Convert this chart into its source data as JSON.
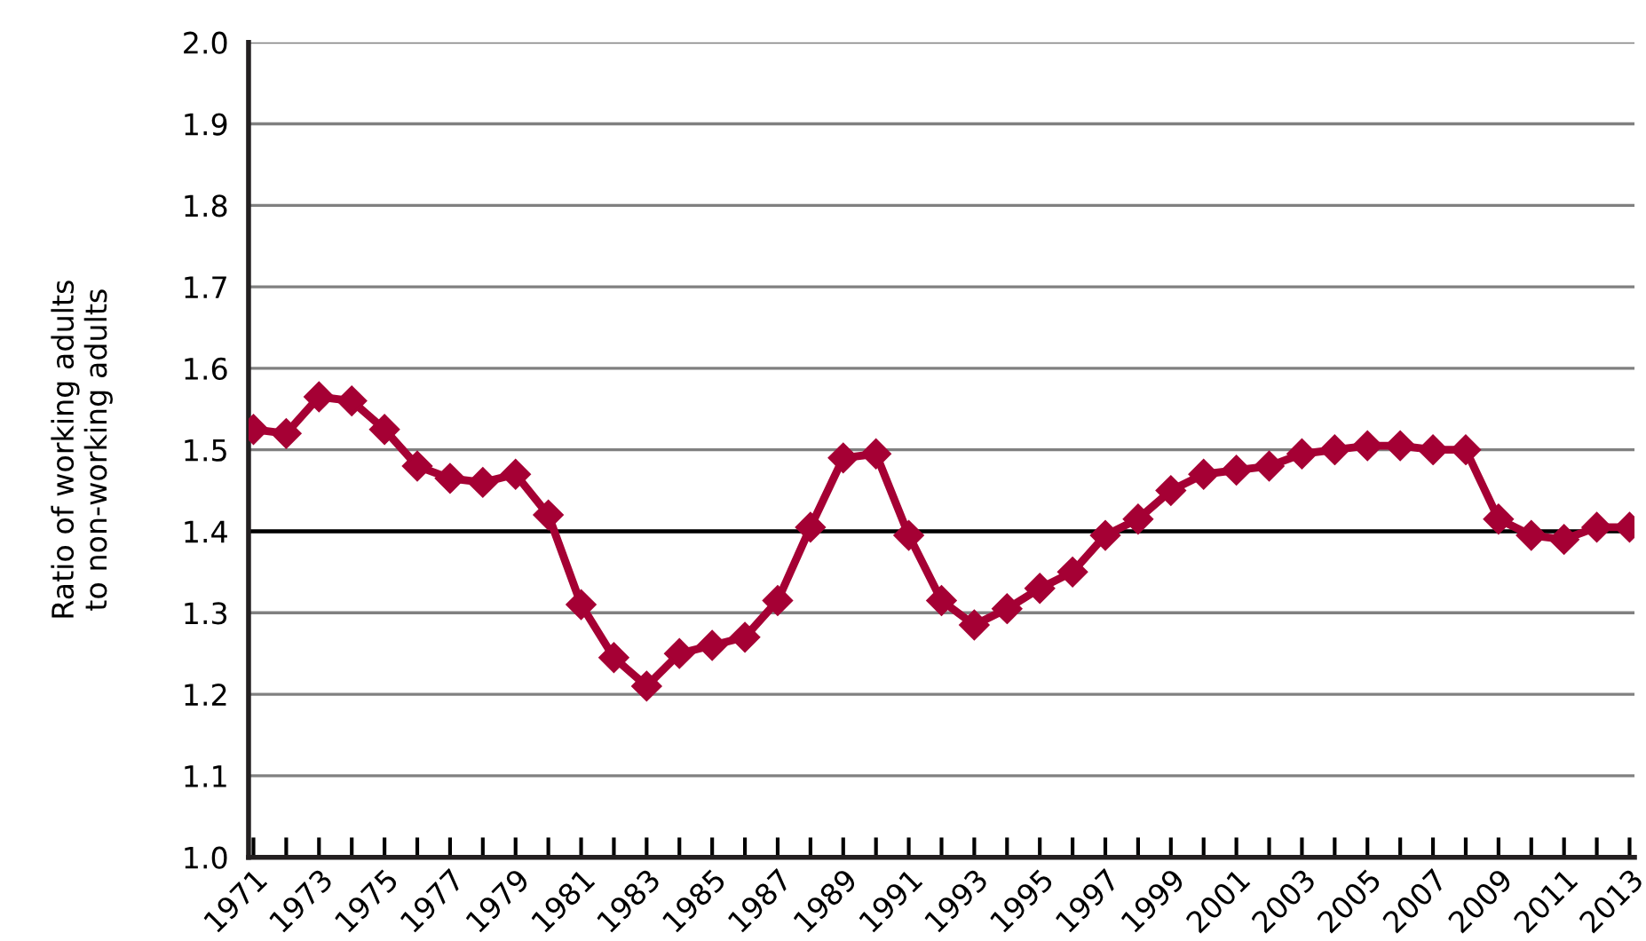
{
  "chart_data": {
    "type": "line",
    "ylabel": "Ratio of working adults\nto non-working adults",
    "categories": [
      "1971",
      null,
      "1973",
      null,
      "1975",
      null,
      "1977",
      null,
      "1979",
      null,
      "1981",
      null,
      "1983",
      null,
      "1985",
      null,
      "1987",
      null,
      "1989",
      null,
      "1991",
      null,
      "1993",
      null,
      "1995",
      null,
      "1997",
      null,
      "1999",
      null,
      "2001",
      null,
      "2003",
      null,
      "2005",
      null,
      "2007",
      null,
      "2009",
      null,
      "2011",
      null,
      "2013"
    ],
    "series": [
      {
        "color": "#a50034",
        "values": [
          1.525,
          1.52,
          1.565,
          1.56,
          1.525,
          1.48,
          1.465,
          1.46,
          1.47,
          1.42,
          1.31,
          1.245,
          1.21,
          1.25,
          1.26,
          1.27,
          1.315,
          1.405,
          1.49,
          1.495,
          1.395,
          1.315,
          1.285,
          1.305,
          1.33,
          1.35,
          1.395,
          1.415,
          1.45,
          1.47,
          1.475,
          1.48,
          1.495,
          1.5,
          1.505,
          1.505,
          1.5,
          1.5,
          1.415,
          1.395,
          1.39,
          1.405,
          1.405
        ]
      }
    ],
    "ylim": [
      1.0,
      2.0
    ],
    "yticks": [
      {
        "value": 1.0,
        "label": "1.0"
      },
      1.1,
      1.2,
      1.3,
      1.4,
      1.5,
      1.6,
      1.7,
      1.8,
      1.9,
      {
        "value": 2.0,
        "label": "2.0"
      }
    ],
    "grid": "y",
    "marker": "diamond",
    "line_style": "solid",
    "ref_lines": [
      {
        "axis": "y",
        "value": 1.4,
        "color": "#000000"
      }
    ]
  }
}
